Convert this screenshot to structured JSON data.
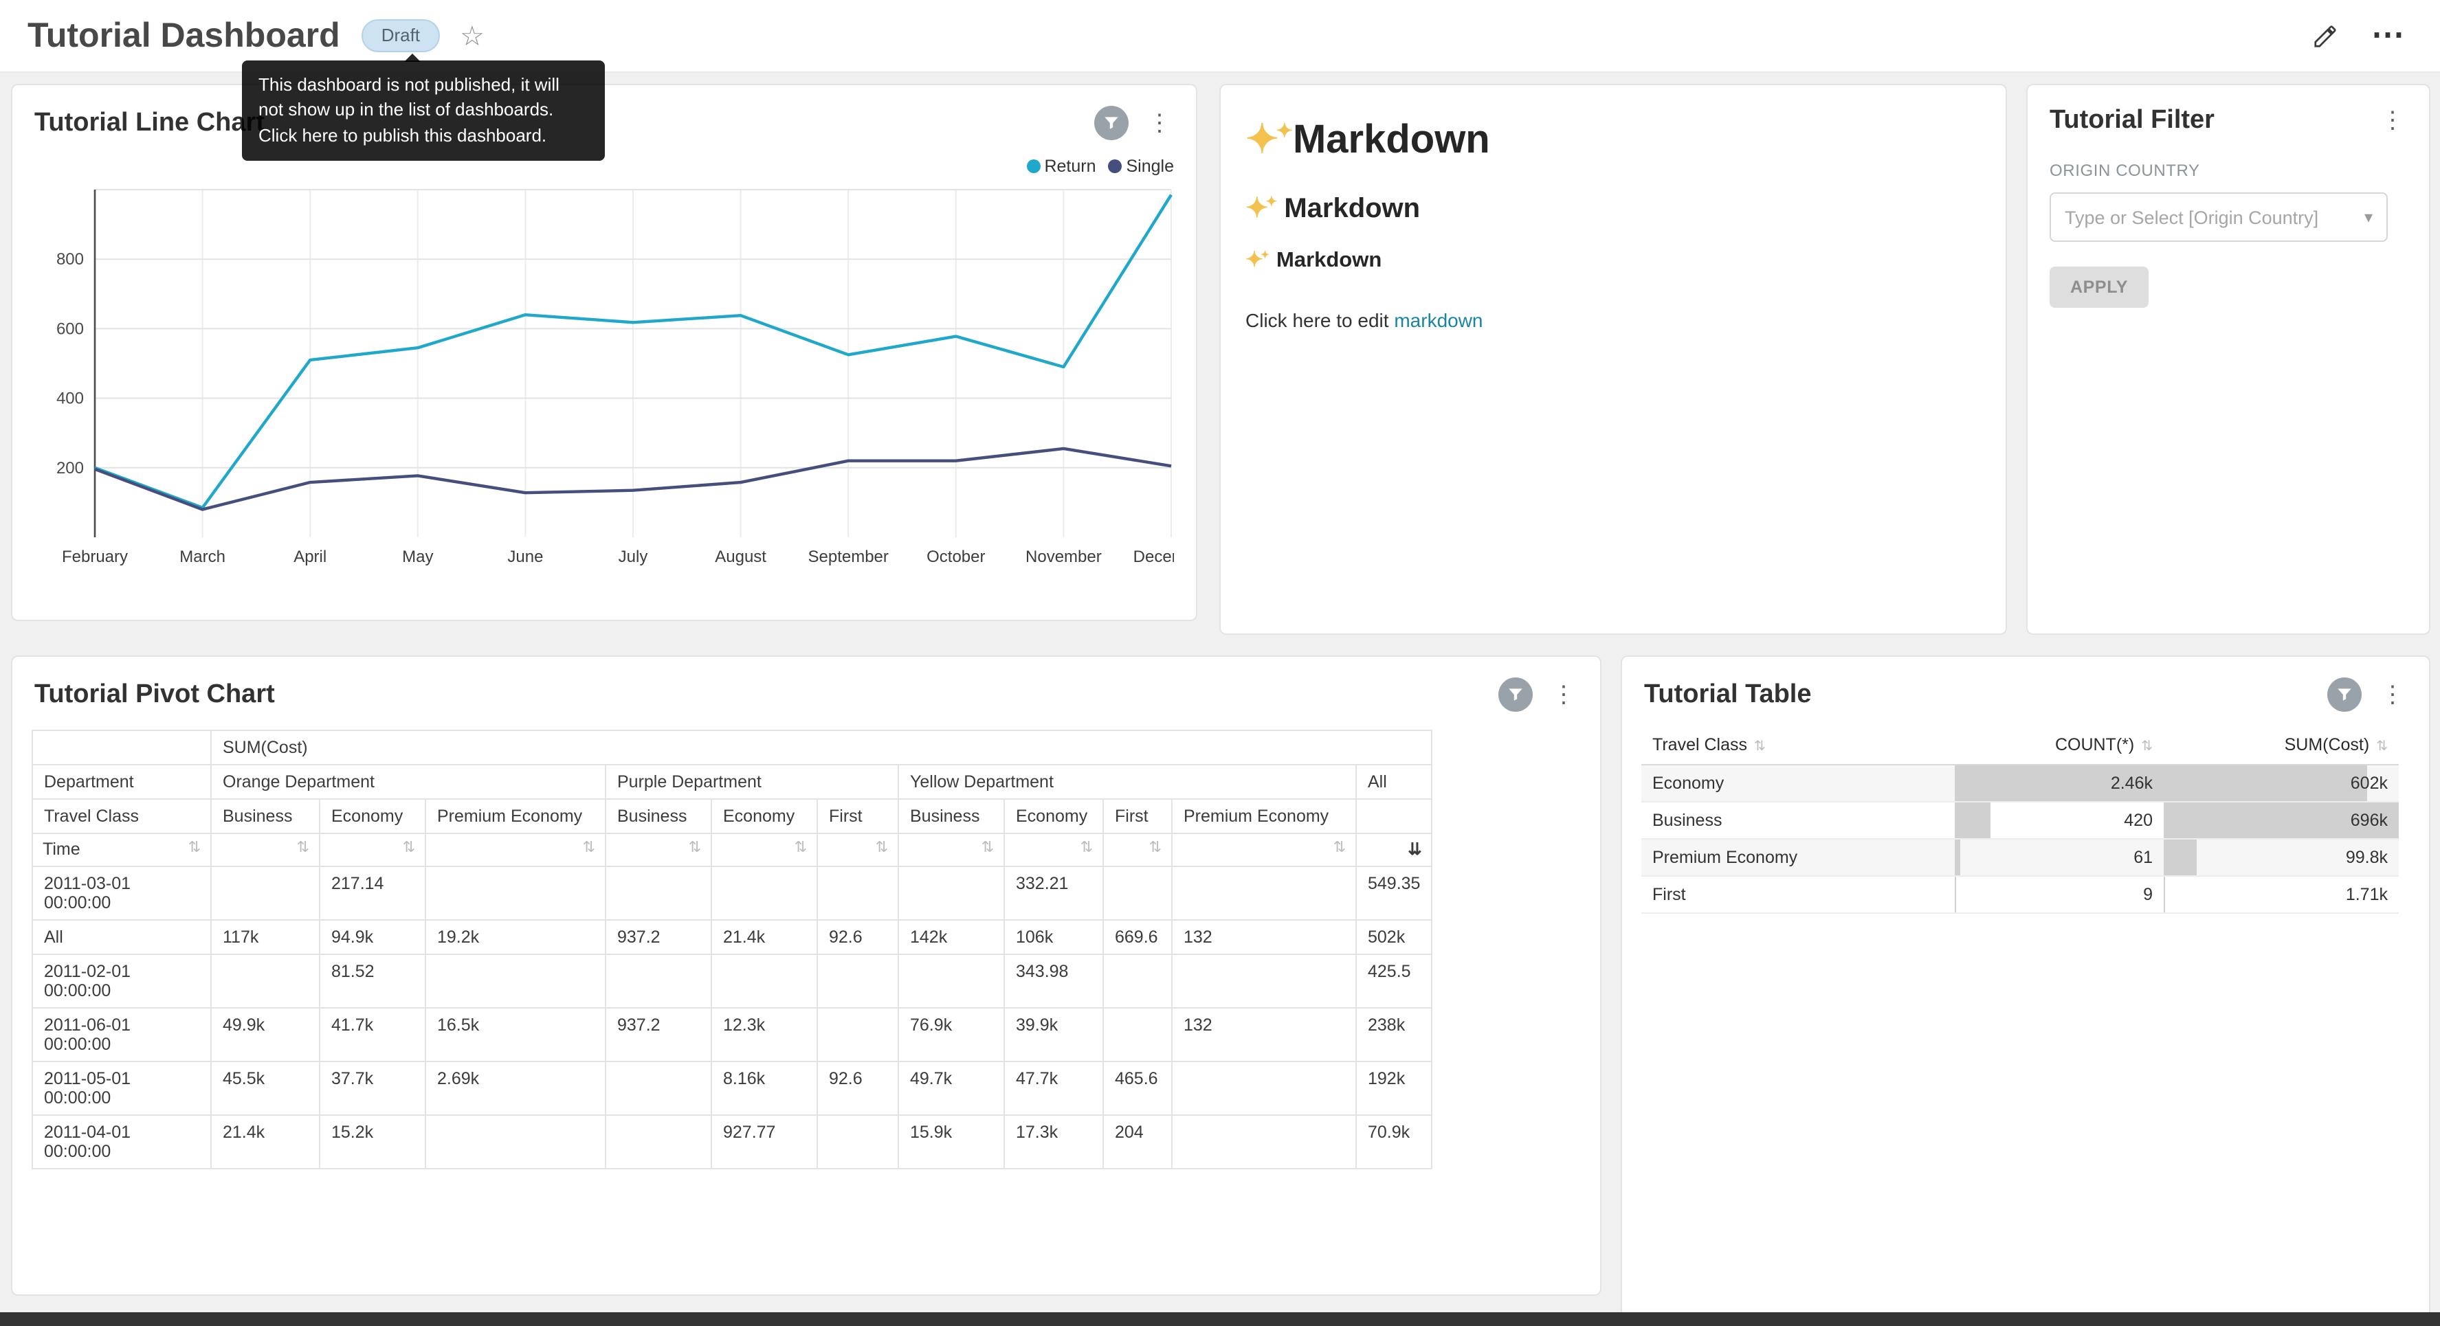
{
  "page": {
    "background": "#f0f0f0",
    "footer_bar_color": "#333333"
  },
  "header": {
    "title": "Tutorial Dashboard",
    "draft_badge": "Draft",
    "tooltip": "This dashboard is not published, it will not show up in the list of dashboards. Click here to publish this dashboard."
  },
  "icons": {
    "star": "☆",
    "more": "⋯",
    "kebab": "⋮",
    "caret_down": "▾",
    "sort": "⇅",
    "sort_desc": "⇊",
    "sparkle_main": "✦",
    "sparkle_small": "✦"
  },
  "line_chart_card": {
    "title": "Tutorial Line Chart"
  },
  "chart_data": [
    {
      "type": "line",
      "title": "Tutorial Line Chart",
      "categories": [
        "February",
        "March",
        "April",
        "May",
        "June",
        "July",
        "August",
        "September",
        "October",
        "November",
        "December"
      ],
      "series": [
        {
          "name": "Return",
          "color": "#1FA8C9",
          "values": [
            200,
            85,
            510,
            545,
            640,
            618,
            638,
            525,
            578,
            490,
            985
          ]
        },
        {
          "name": "Single",
          "color": "#454E7C",
          "values": [
            196,
            80,
            158,
            177,
            128,
            135,
            158,
            220,
            220,
            255,
            205
          ]
        }
      ],
      "ylim": [
        0,
        1000
      ],
      "yticks": [
        200,
        400,
        600,
        800
      ],
      "grid": true,
      "legend_position": "top-right"
    }
  ],
  "markdown_card": {
    "sparkle_icon": "sparkles",
    "h1": "Markdown",
    "h2": "Markdown",
    "h3": "Markdown",
    "paragraph_prefix": "Click here to edit ",
    "link_text": "markdown",
    "link_color": "#1985a0"
  },
  "filter_card": {
    "title": "Tutorial Filter",
    "field_label": "ORIGIN COUNTRY",
    "select_placeholder": "Type or Select [Origin Country]",
    "apply_label": "APPLY"
  },
  "pivot_card": {
    "title": "Tutorial Pivot Chart",
    "metric_label": "SUM(Cost)",
    "col_axis_label": "Department",
    "row_axis_label": "Travel Class",
    "time_label": "Time",
    "col_groups": [
      {
        "label": "Orange Department",
        "cols": [
          "Business",
          "Economy",
          "Premium Economy"
        ]
      },
      {
        "label": "Purple Department",
        "cols": [
          "Business",
          "Economy",
          "First"
        ]
      },
      {
        "label": "Yellow Department",
        "cols": [
          "Business",
          "Economy",
          "First",
          "Premium Economy"
        ]
      },
      {
        "label": "All",
        "cols": [
          ""
        ]
      }
    ],
    "rows": [
      {
        "label": "2011-03-01 00:00:00",
        "values": [
          "",
          "217.14",
          "",
          "",
          "",
          "",
          "",
          "332.21",
          "",
          "",
          "549.35"
        ]
      },
      {
        "label": "All",
        "values": [
          "117k",
          "94.9k",
          "19.2k",
          "937.2",
          "21.4k",
          "92.6",
          "142k",
          "106k",
          "669.6",
          "132",
          "502k"
        ]
      },
      {
        "label": "2011-02-01 00:00:00",
        "values": [
          "",
          "81.52",
          "",
          "",
          "",
          "",
          "",
          "343.98",
          "",
          "",
          "425.5"
        ]
      },
      {
        "label": "2011-06-01 00:00:00",
        "values": [
          "49.9k",
          "41.7k",
          "16.5k",
          "937.2",
          "12.3k",
          "",
          "76.9k",
          "39.9k",
          "",
          "132",
          "238k"
        ]
      },
      {
        "label": "2011-05-01 00:00:00",
        "values": [
          "45.5k",
          "37.7k",
          "2.69k",
          "",
          "8.16k",
          "92.6",
          "49.7k",
          "47.7k",
          "465.6",
          "",
          "192k"
        ]
      },
      {
        "label": "2011-04-01 00:00:00",
        "values": [
          "21.4k",
          "15.2k",
          "",
          "",
          "927.77",
          "",
          "15.9k",
          "17.3k",
          "204",
          "",
          "70.9k"
        ]
      }
    ]
  },
  "table_card": {
    "title": "Tutorial Table",
    "columns": [
      "Travel Class",
      "COUNT(*)",
      "SUM(Cost)"
    ],
    "rows": [
      {
        "travel_class": "Economy",
        "count": "2.46k",
        "count_bar_pct": 100,
        "sum": "602k",
        "sum_bar_pct": 86.5
      },
      {
        "travel_class": "Business",
        "count": "420",
        "count_bar_pct": 17,
        "sum": "696k",
        "sum_bar_pct": 100
      },
      {
        "travel_class": "Premium Economy",
        "count": "61",
        "count_bar_pct": 2.5,
        "sum": "99.8k",
        "sum_bar_pct": 14.3
      },
      {
        "travel_class": "First",
        "count": "9",
        "count_bar_pct": 0.4,
        "sum": "1.71k",
        "sum_bar_pct": 0.25
      }
    ]
  }
}
